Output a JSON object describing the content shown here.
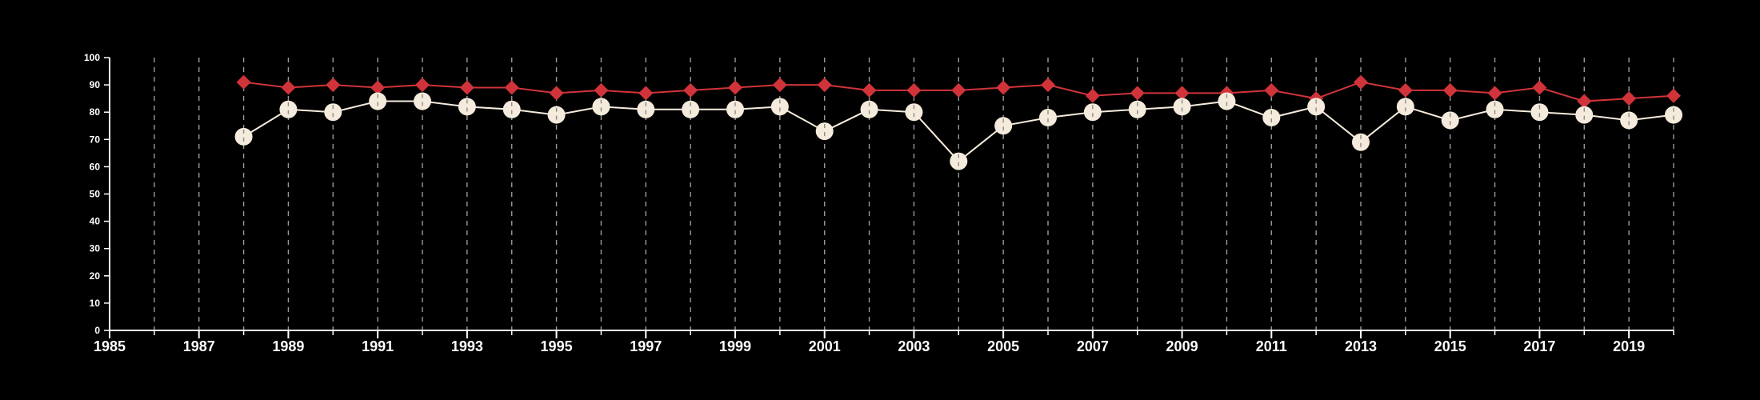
{
  "chart_data": {
    "type": "line",
    "title": "",
    "xlabel": "",
    "ylabel": "",
    "xlim": [
      1985,
      2020
    ],
    "ylim": [
      0,
      100
    ],
    "x_ticks": [
      "1985",
      "1987",
      "1989",
      "1991",
      "1993",
      "1995",
      "1997",
      "1999",
      "2001",
      "2003",
      "2005",
      "2007",
      "2009",
      "2011",
      "2013",
      "2015",
      "2017",
      "2019"
    ],
    "y_ticks": [
      "0",
      "10",
      "20",
      "30",
      "40",
      "50",
      "60",
      "70",
      "80",
      "90",
      "100"
    ],
    "grid": "vertical dashed lines at every year",
    "legend": "none",
    "x": [
      1988,
      1989,
      1990,
      1991,
      1992,
      1993,
      1994,
      1995,
      1996,
      1997,
      1998,
      1999,
      2000,
      2001,
      2002,
      2003,
      2004,
      2005,
      2006,
      2007,
      2008,
      2009,
      2010,
      2011,
      2012,
      2013,
      2014,
      2015,
      2016,
      2017,
      2018,
      2019,
      2020
    ],
    "series": [
      {
        "marker": "diamond",
        "color": "#d0343a",
        "values": [
          91,
          89,
          90,
          89,
          90,
          89,
          89,
          87,
          88,
          87,
          88,
          89,
          90,
          90,
          88,
          88,
          88,
          89,
          90,
          86,
          87,
          87,
          87,
          88,
          85,
          91,
          88,
          88,
          87,
          89,
          84,
          85,
          86
        ]
      },
      {
        "marker": "circle",
        "color": "#f5ebdc",
        "values": [
          71,
          81,
          80,
          84,
          84,
          82,
          81,
          79,
          82,
          81,
          81,
          81,
          82,
          73,
          81,
          80,
          62,
          75,
          78,
          80,
          81,
          82,
          84,
          78,
          82,
          69,
          82,
          77,
          81,
          80,
          79,
          77,
          79
        ]
      }
    ]
  }
}
